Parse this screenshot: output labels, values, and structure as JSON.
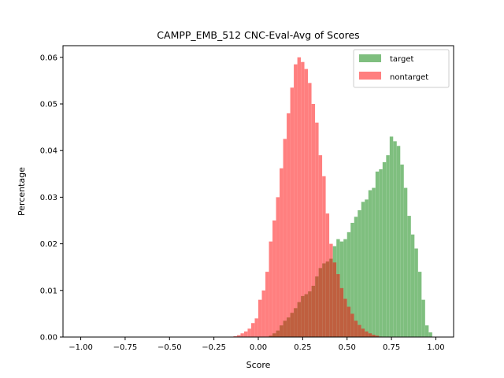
{
  "chart_data": {
    "type": "histogram",
    "title": "CAMPP_EMB_512 CNC-Eval-Avg of Scores",
    "xlabel": "Score",
    "ylabel": "Percentage",
    "xlim": [
      -1.1,
      1.1
    ],
    "ylim": [
      0,
      0.0625
    ],
    "xticks": [
      -1.0,
      -0.75,
      -0.5,
      -0.25,
      0.0,
      0.25,
      0.5,
      0.75,
      1.0
    ],
    "xtick_labels": [
      "−1.00",
      "−0.75",
      "−0.50",
      "−0.25",
      "0.00",
      "0.25",
      "0.50",
      "0.75",
      "1.00"
    ],
    "yticks": [
      0.0,
      0.01,
      0.02,
      0.03,
      0.04,
      0.05,
      0.06
    ],
    "ytick_labels": [
      "0.00",
      "0.01",
      "0.02",
      "0.03",
      "0.04",
      "0.05",
      "0.06"
    ],
    "grid": false,
    "legend_position": "top-right",
    "bin_width": 0.0196,
    "series": [
      {
        "name": "target",
        "color": "#008000",
        "opacity": 0.5,
        "bins": [
          [
            0.06,
            0.0003
          ],
          [
            0.08,
            0.0008
          ],
          [
            0.1,
            0.0014
          ],
          [
            0.12,
            0.0025
          ],
          [
            0.14,
            0.0035
          ],
          [
            0.16,
            0.0042
          ],
          [
            0.18,
            0.0052
          ],
          [
            0.2,
            0.0062
          ],
          [
            0.22,
            0.0075
          ],
          [
            0.24,
            0.0088
          ],
          [
            0.26,
            0.0092
          ],
          [
            0.28,
            0.0098
          ],
          [
            0.3,
            0.011
          ],
          [
            0.32,
            0.013
          ],
          [
            0.34,
            0.0148
          ],
          [
            0.36,
            0.0158
          ],
          [
            0.38,
            0.0162
          ],
          [
            0.4,
            0.0168
          ],
          [
            0.42,
            0.0195
          ],
          [
            0.44,
            0.021
          ],
          [
            0.46,
            0.0205
          ],
          [
            0.48,
            0.021
          ],
          [
            0.5,
            0.0225
          ],
          [
            0.52,
            0.0245
          ],
          [
            0.54,
            0.0258
          ],
          [
            0.56,
            0.0272
          ],
          [
            0.58,
            0.029
          ],
          [
            0.6,
            0.0295
          ],
          [
            0.62,
            0.0315
          ],
          [
            0.64,
            0.032
          ],
          [
            0.66,
            0.0355
          ],
          [
            0.68,
            0.036
          ],
          [
            0.7,
            0.0375
          ],
          [
            0.72,
            0.039
          ],
          [
            0.74,
            0.043
          ],
          [
            0.76,
            0.042
          ],
          [
            0.78,
            0.041
          ],
          [
            0.8,
            0.037
          ],
          [
            0.82,
            0.032
          ],
          [
            0.84,
            0.026
          ],
          [
            0.86,
            0.022
          ],
          [
            0.88,
            0.019
          ],
          [
            0.9,
            0.014
          ],
          [
            0.92,
            0.008
          ],
          [
            0.94,
            0.0025
          ],
          [
            0.96,
            0.001
          ]
        ]
      },
      {
        "name": "nontarget",
        "color": "#ff0000",
        "opacity": 0.5,
        "bins": [
          [
            -0.14,
            0.0002
          ],
          [
            -0.12,
            0.0004
          ],
          [
            -0.1,
            0.0008
          ],
          [
            -0.08,
            0.0012
          ],
          [
            -0.06,
            0.0018
          ],
          [
            -0.04,
            0.003
          ],
          [
            -0.02,
            0.004
          ],
          [
            0.0,
            0.008
          ],
          [
            0.02,
            0.01
          ],
          [
            0.04,
            0.014
          ],
          [
            0.06,
            0.0205
          ],
          [
            0.08,
            0.025
          ],
          [
            0.1,
            0.03
          ],
          [
            0.12,
            0.0362
          ],
          [
            0.14,
            0.0425
          ],
          [
            0.16,
            0.048
          ],
          [
            0.18,
            0.0535
          ],
          [
            0.2,
            0.0585
          ],
          [
            0.22,
            0.06
          ],
          [
            0.24,
            0.059
          ],
          [
            0.26,
            0.0575
          ],
          [
            0.28,
            0.0545
          ],
          [
            0.3,
            0.05
          ],
          [
            0.32,
            0.046
          ],
          [
            0.34,
            0.039
          ],
          [
            0.36,
            0.0345
          ],
          [
            0.38,
            0.0265
          ],
          [
            0.4,
            0.02
          ],
          [
            0.42,
            0.016
          ],
          [
            0.44,
            0.0135
          ],
          [
            0.46,
            0.0105
          ],
          [
            0.48,
            0.0082
          ],
          [
            0.5,
            0.0065
          ],
          [
            0.52,
            0.005
          ],
          [
            0.54,
            0.0035
          ],
          [
            0.56,
            0.0026
          ],
          [
            0.58,
            0.0018
          ],
          [
            0.6,
            0.0012
          ],
          [
            0.62,
            0.0008
          ],
          [
            0.64,
            0.0005
          ],
          [
            0.66,
            0.0003
          ],
          [
            0.68,
            0.0001
          ]
        ]
      }
    ]
  }
}
